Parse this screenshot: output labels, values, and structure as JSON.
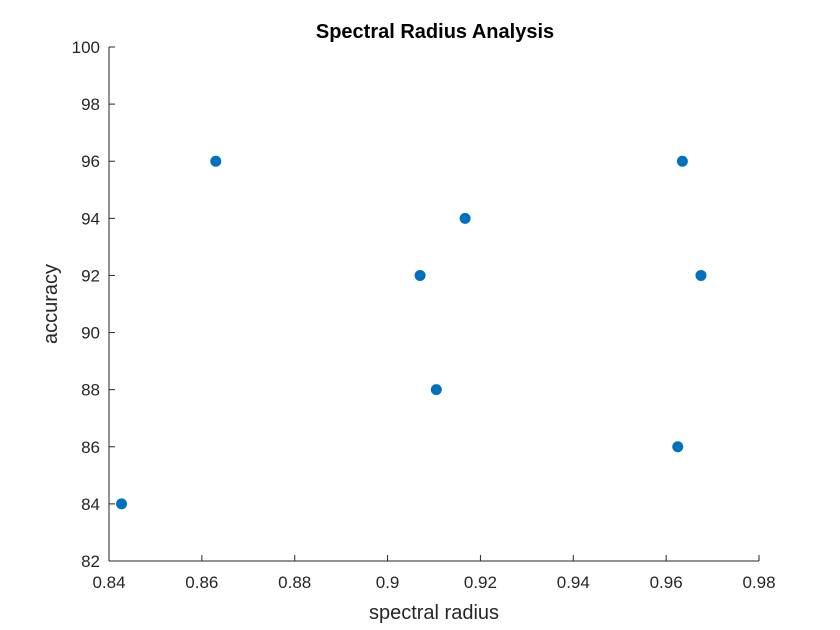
{
  "chart_data": {
    "type": "scatter",
    "title": "Spectral Radius Analysis",
    "xlabel": "spectral radius",
    "ylabel": "accuracy",
    "xlim": [
      0.84,
      0.98
    ],
    "ylim": [
      82,
      100
    ],
    "xticks": [
      0.84,
      0.86,
      0.88,
      0.9,
      0.92,
      0.94,
      0.96,
      0.98
    ],
    "xtick_labels": [
      "0.84",
      "0.86",
      "0.88",
      "0.9",
      "0.92",
      "0.94",
      "0.96",
      "0.98"
    ],
    "yticks": [
      82,
      84,
      86,
      88,
      90,
      92,
      94,
      96,
      98,
      100
    ],
    "ytick_labels": [
      "82",
      "84",
      "86",
      "88",
      "90",
      "92",
      "94",
      "96",
      "98",
      "100"
    ],
    "grid": false,
    "legend": "none",
    "marker_color": "#0072BD",
    "axis_color": "#262626",
    "series": [
      {
        "x": [
          0.8427,
          0.863,
          0.907,
          0.9105,
          0.9167,
          0.9625,
          0.9635,
          0.9675
        ],
        "y": [
          84,
          96,
          92,
          88,
          94,
          86,
          96,
          92
        ]
      }
    ]
  }
}
